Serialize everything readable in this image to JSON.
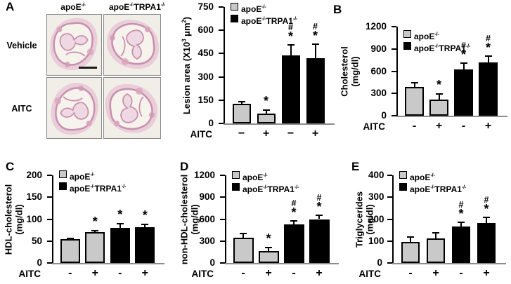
{
  "colors": {
    "gray": "#c9c9c9",
    "black": "#000000",
    "baseline": "#8c8c8c",
    "tissue_pink": "#e9cdd9"
  },
  "panel_a": {
    "label": "A",
    "col_headers": [
      "apoE^{-/-}",
      "apoE^{-/-}TRPA1^{-/-}"
    ],
    "row_labels": [
      "Vehicle",
      "AITC"
    ]
  },
  "chart_data": [
    {
      "panel": "A",
      "type": "bar",
      "title": "",
      "ylabel_lines": [
        "Lesion area (X10^{3} μm^{2})"
      ],
      "ylim": [
        0,
        750
      ],
      "yticks": [
        0,
        150,
        300,
        450,
        600,
        750
      ],
      "xlabel": "AITC",
      "x_tick_labels": [
        "−",
        "+",
        "−",
        "+"
      ],
      "legend": [
        {
          "label": "apoE^{-/-}",
          "color": "gray"
        },
        {
          "label": "apoE^{-/-}TRPA1^{-/-}",
          "color": "black"
        }
      ],
      "series_colors": [
        "gray",
        "gray",
        "black",
        "black"
      ],
      "values": [
        125,
        65,
        440,
        420
      ],
      "errors": [
        20,
        25,
        70,
        95
      ],
      "significance": [
        "",
        "*",
        "#*",
        "#*"
      ]
    },
    {
      "panel": "B",
      "type": "bar",
      "title": "",
      "ylabel_lines": [
        "Cholesterol",
        "(mg/dl)"
      ],
      "ylim": [
        0,
        1200
      ],
      "yticks": [
        0,
        300,
        600,
        900,
        1200
      ],
      "xlabel": "AITC",
      "x_tick_labels": [
        "-",
        "+",
        "-",
        "+"
      ],
      "legend": [
        {
          "label": "apoE^{-/-}",
          "color": "gray"
        },
        {
          "label": "apoE^{-/-}TRPA1^{-/-}",
          "color": "black"
        }
      ],
      "series_colors": [
        "gray",
        "gray",
        "black",
        "black"
      ],
      "values": [
        390,
        220,
        620,
        720
      ],
      "errors": [
        60,
        80,
        100,
        90
      ],
      "significance": [
        "",
        "*",
        "#*",
        "#*"
      ]
    },
    {
      "panel": "C",
      "type": "bar",
      "title": "",
      "ylabel_lines": [
        "HDL-cholesterol",
        "(mg/dl)"
      ],
      "ylim": [
        0,
        200
      ],
      "yticks": [
        0,
        50,
        100,
        150,
        200
      ],
      "xlabel": "AITC",
      "x_tick_labels": [
        "-",
        "+",
        "-",
        "+"
      ],
      "legend": [
        {
          "label": "apoE^{-/-}",
          "color": "gray"
        },
        {
          "label": "apoE^{-/-}TRPA1^{-/-}",
          "color": "black"
        }
      ],
      "series_colors": [
        "gray",
        "gray",
        "black",
        "black"
      ],
      "values": [
        55,
        70,
        80,
        81
      ],
      "errors": [
        3,
        5,
        12,
        9
      ],
      "significance": [
        "",
        "*",
        "*",
        "*"
      ]
    },
    {
      "panel": "D",
      "type": "bar",
      "title": "",
      "ylabel_lines": [
        "non-HDL-cholesterol",
        "(mg/dl)"
      ],
      "ylim": [
        0,
        1200
      ],
      "yticks": [
        0,
        300,
        600,
        900,
        1200
      ],
      "xlabel": "AITC",
      "x_tick_labels": [
        "-",
        "+",
        "-",
        "+"
      ],
      "legend": [
        {
          "label": "apoE^{-/-}",
          "color": "gray"
        },
        {
          "label": "apoE^{-/-}TRPA1^{-/-}",
          "color": "black"
        }
      ],
      "series_colors": [
        "gray",
        "gray",
        "black",
        "black"
      ],
      "values": [
        350,
        165,
        530,
        600
      ],
      "errors": [
        65,
        55,
        60,
        65
      ],
      "significance": [
        "",
        "*",
        "#*",
        "#*"
      ]
    },
    {
      "panel": "E",
      "type": "bar",
      "title": "",
      "ylabel_lines": [
        "Triglycerides",
        "(mg/dl)"
      ],
      "ylim": [
        0,
        400
      ],
      "yticks": [
        0,
        100,
        200,
        300,
        400
      ],
      "xlabel": "AITC",
      "x_tick_labels": [
        "-",
        "+",
        "-",
        "+"
      ],
      "legend": [
        {
          "label": "apoE^{-/-}",
          "color": "gray"
        },
        {
          "label": "apoE^{-/-}TRPA1^{-/-}",
          "color": "black"
        }
      ],
      "series_colors": [
        "gray",
        "gray",
        "black",
        "black"
      ],
      "values": [
        97,
        113,
        165,
        183
      ],
      "errors": [
        25,
        27,
        25,
        27
      ],
      "significance": [
        "",
        "",
        "#*",
        "#*"
      ]
    }
  ]
}
